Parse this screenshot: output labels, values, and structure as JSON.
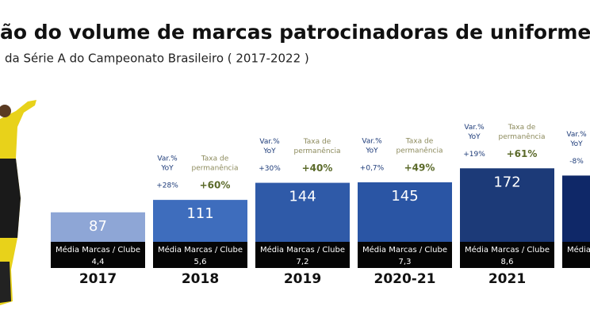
{
  "chart_data": {
    "type": "bar",
    "title": "ão do volume de marcas patrocinadoras de uniforme",
    "subtitle": "da Série A do Campeonato Brasileiro ( 2017-2022 )",
    "categories": [
      "2017",
      "2018",
      "2019",
      "2020-21",
      "2021",
      null
    ],
    "values": [
      87,
      111,
      144,
      145,
      172,
      158
    ],
    "value_labels": [
      "87",
      "111",
      "144",
      "145",
      "172",
      null
    ],
    "colors": [
      "#8ea6d6",
      "#3e6dbd",
      "#2f5aa8",
      "#2a55a4",
      "#1c3a78",
      "#0f2868"
    ],
    "ylim": [
      30,
      200
    ],
    "yoy_label": [
      "Var.%",
      "YoY"
    ],
    "yoy_values": [
      null,
      28,
      30,
      0.7,
      19,
      -8
    ],
    "yoy_value_labels": [
      null,
      "+28%",
      "+30%",
      "+0,7%",
      "+19%",
      "-8%"
    ],
    "retention_label": [
      "Taxa de",
      "permanência"
    ],
    "retention_values": [
      null,
      60,
      40,
      49,
      61,
      null
    ],
    "retention_value_labels": [
      null,
      "+60%",
      "+40%",
      "+49%",
      "+61%",
      null
    ],
    "footer_label": "Média Marcas / Clube",
    "footer_values": [
      4.4,
      5.6,
      7.2,
      7.3,
      8.6,
      null
    ],
    "footer_value_labels": [
      "4,4",
      "5,6",
      "7,2",
      "7,3",
      "8,6",
      null
    ]
  }
}
